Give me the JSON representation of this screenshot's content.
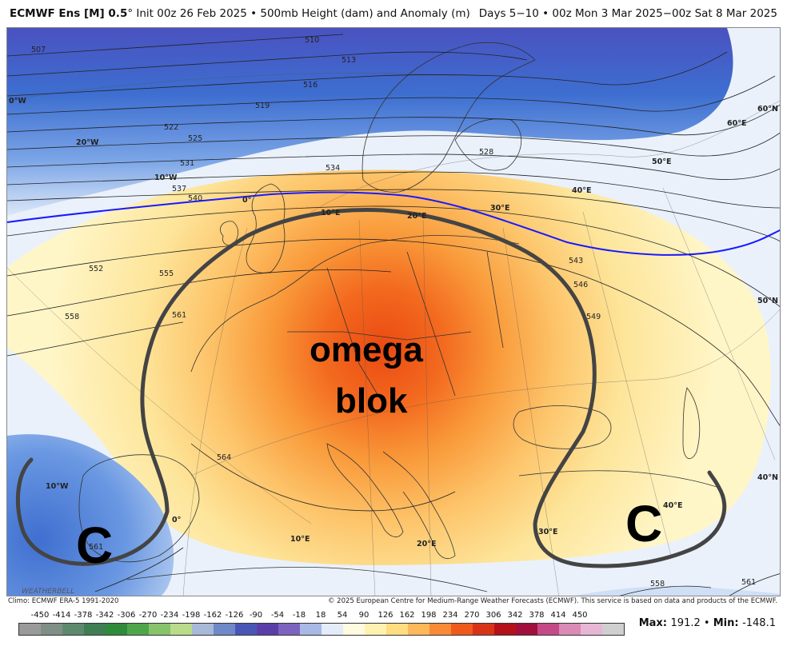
{
  "header": {
    "model": "ECMWF Ens [M] 0.5",
    "degree": "°",
    "init": " Init 00z 26 Feb 2025 • 500mb Height (dam) and Anomaly (m)",
    "valid": "Days 5−10 • 00z Mon 3 Mar 2025−00z Sat 8 Mar 2025"
  },
  "annotations": {
    "line1": "omega",
    "line2": "blok",
    "cyclone_west": "C",
    "cyclone_east": "C"
  },
  "watermark": "WEATHERBELL",
  "contour_labels": [
    "507",
    "510",
    "513",
    "516",
    "519",
    "522",
    "525",
    "528",
    "531",
    "534",
    "537",
    "540",
    "543",
    "546",
    "549",
    "552",
    "555",
    "558",
    "561",
    "564",
    "558",
    "561",
    "561"
  ],
  "lon_labels": [
    "0°W",
    "20°W",
    "10°W",
    "0°",
    "10°E",
    "20°E",
    "30°E",
    "40°E",
    "50°E",
    "60°E",
    "60°N",
    "50°N",
    "40°N",
    "10°W",
    "0°",
    "10°E",
    "20°E",
    "30°E",
    "40°E"
  ],
  "footer": {
    "climo": "Climo: ECMWF ERA-5 1991-2020",
    "copyright": "© 2025 European Centre for Medium-Range Weather Forecasts (ECMWF). This service is based on data and products of the ECMWF."
  },
  "colorbar": {
    "ticks": [
      "-450",
      "-414",
      "-378",
      "-342",
      "-306",
      "-270",
      "-234",
      "-198",
      "-162",
      "-126",
      "-90",
      "-54",
      "-18",
      "18",
      "54",
      "90",
      "126",
      "162",
      "198",
      "234",
      "270",
      "306",
      "342",
      "378",
      "414",
      "450"
    ],
    "colors": [
      "#9a9a9a",
      "#7f8f86",
      "#5d8a6e",
      "#3f7d52",
      "#2e8b3a",
      "#4fa64a",
      "#86c36a",
      "#b9db8a",
      "#a7b8d9",
      "#6f88c8",
      "#4a56b6",
      "#5b3fa8",
      "#7d63c0",
      "#a8b9e6",
      "#e3ecf8",
      "#fffbe0",
      "#fff1b0",
      "#ffdd80",
      "#fdb85a",
      "#f98a36",
      "#ee5a1c",
      "#d73417",
      "#b5111b",
      "#a10f3d",
      "#c34a86",
      "#d98ab5",
      "#e7b6d5",
      "#cfcfcf"
    ],
    "max_label": "Max",
    "max": "191.2",
    "min_label": "Min",
    "min": "-148.1"
  }
}
